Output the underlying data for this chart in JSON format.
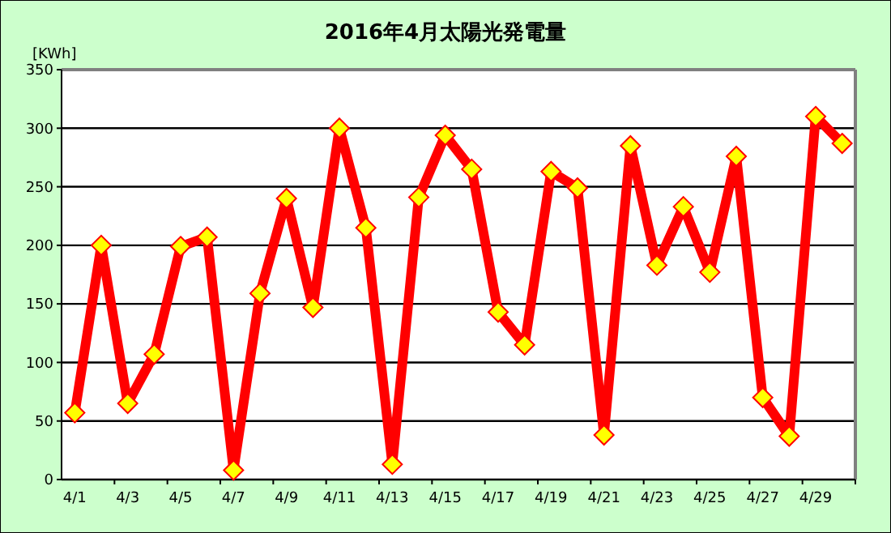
{
  "chart_data": {
    "type": "line",
    "title": "2016年4月太陽光発電量",
    "ylabel": "[KWh]",
    "categories": [
      "4/1",
      null,
      "4/3",
      null,
      "4/5",
      null,
      "4/7",
      null,
      "4/9",
      null,
      "4/11",
      null,
      "4/13",
      null,
      "4/15",
      null,
      "4/17",
      null,
      "4/19",
      null,
      "4/21",
      null,
      "4/23",
      null,
      "4/25",
      null,
      "4/27",
      null,
      "4/29",
      null
    ],
    "series": [
      {
        "color": "#ff0000",
        "values": [
          57,
          200,
          65,
          107,
          199,
          207,
          8,
          159,
          240,
          147,
          300,
          215,
          13,
          241,
          294,
          265,
          143,
          115,
          263,
          249,
          38,
          285,
          183,
          233,
          177,
          276,
          70,
          37,
          310,
          287
        ]
      }
    ],
    "ylim": [
      0,
      350
    ],
    "yticks": [
      0,
      50,
      100,
      150,
      200,
      250,
      300,
      350
    ],
    "grid": "y",
    "marker": "diamond"
  }
}
